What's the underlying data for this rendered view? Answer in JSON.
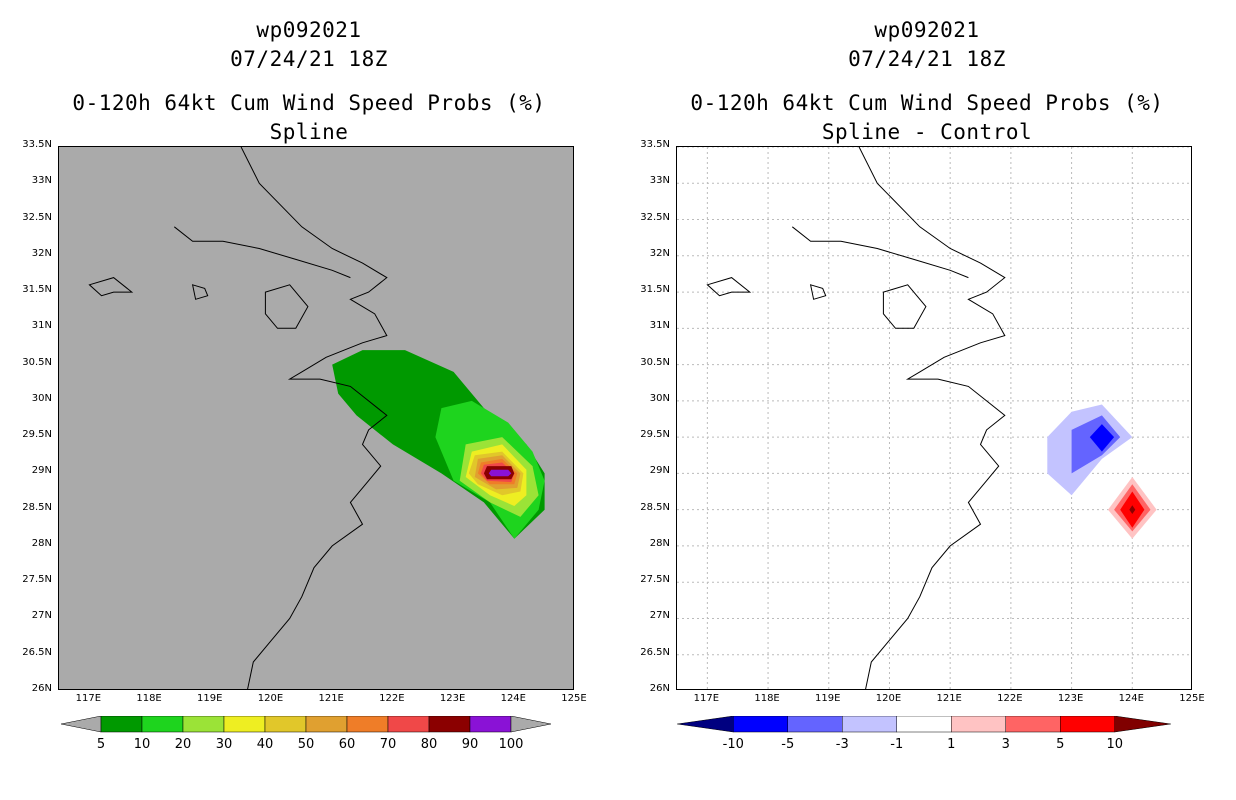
{
  "panels": [
    {
      "id": "left",
      "title_lines": [
        "wp092021",
        "07/24/21 18Z",
        "0-120h 64kt Cum Wind Speed Probs (%)",
        "Spline"
      ],
      "background": "#aaaaaa",
      "gridlines": false,
      "colorbar": {
        "labels": [
          "5",
          "10",
          "20",
          "30",
          "40",
          "50",
          "60",
          "70",
          "80",
          "90",
          "100"
        ],
        "low_arrow_color": "#aaaaaa",
        "high_arrow_color": "#aaaaaa",
        "colors": [
          "#009900",
          "#1ed41e",
          "#9be337",
          "#eeee22",
          "#e1c72a",
          "#e0a030",
          "#ef7d28",
          "#f04848",
          "#8b0000",
          "#8a12d6"
        ]
      }
    },
    {
      "id": "right",
      "title_lines": [
        "wp092021",
        "07/24/21 18Z",
        "0-120h 64kt Cum Wind Speed Probs (%)",
        "Spline - Control"
      ],
      "background": "#ffffff",
      "gridlines": true,
      "colorbar": {
        "labels": [
          "-10",
          "-5",
          "-3",
          "-1",
          "1",
          "3",
          "5",
          "10"
        ],
        "low_arrow_color": "#000080",
        "high_arrow_color": "#800000",
        "colors": [
          "#0000ff",
          "#6464ff",
          "#c3c3ff",
          "#ffffff",
          "#ffc3c3",
          "#ff6464",
          "#ff0000"
        ]
      }
    }
  ],
  "axes": {
    "lat_labels": [
      "33.5N",
      "33N",
      "32.5N",
      "32N",
      "31.5N",
      "31N",
      "30.5N",
      "30N",
      "29.5N",
      "29N",
      "28.5N",
      "28N",
      "27.5N",
      "27N",
      "26.5N",
      "26N"
    ],
    "lat_values": [
      33.5,
      33,
      32.5,
      32,
      31.5,
      31,
      30.5,
      30,
      29.5,
      29,
      28.5,
      28,
      27.5,
      27,
      26.5,
      26
    ],
    "lon_labels": [
      "117E",
      "118E",
      "119E",
      "120E",
      "121E",
      "122E",
      "123E",
      "124E",
      "125E"
    ],
    "lon_values": [
      117,
      118,
      119,
      120,
      121,
      122,
      123,
      124,
      125
    ],
    "lon_range": [
      116.5,
      125
    ],
    "lat_range": [
      26,
      33.5
    ]
  },
  "map_data": {
    "probability_contours_left": [
      {
        "level": "5",
        "color": "#009900",
        "lonlat": [
          [
            121.0,
            30.5
          ],
          [
            121.5,
            30.7
          ],
          [
            122.2,
            30.7
          ],
          [
            123.0,
            30.4
          ],
          [
            123.5,
            29.9
          ],
          [
            124.2,
            29.4
          ],
          [
            124.5,
            29.0
          ],
          [
            124.5,
            28.5
          ],
          [
            124.0,
            28.1
          ],
          [
            123.5,
            28.6
          ],
          [
            122.8,
            29.0
          ],
          [
            122.0,
            29.4
          ],
          [
            121.4,
            29.8
          ],
          [
            121.1,
            30.1
          ]
        ]
      },
      {
        "level": "10",
        "color": "#1ed41e",
        "lonlat": [
          [
            122.8,
            29.9
          ],
          [
            123.3,
            30.0
          ],
          [
            123.9,
            29.7
          ],
          [
            124.3,
            29.3
          ],
          [
            124.5,
            28.9
          ],
          [
            124.4,
            28.5
          ],
          [
            124.0,
            28.1
          ],
          [
            123.6,
            28.6
          ],
          [
            123.0,
            28.9
          ],
          [
            122.7,
            29.5
          ]
        ]
      },
      {
        "level": "20",
        "color": "#9be337",
        "lonlat": [
          [
            123.2,
            29.4
          ],
          [
            123.8,
            29.5
          ],
          [
            124.3,
            29.1
          ],
          [
            124.4,
            28.7
          ],
          [
            124.1,
            28.4
          ],
          [
            123.6,
            28.6
          ],
          [
            123.1,
            28.9
          ]
        ]
      },
      {
        "level": "30",
        "color": "#eeee22",
        "lonlat": [
          [
            123.3,
            29.3
          ],
          [
            123.8,
            29.4
          ],
          [
            124.2,
            29.05
          ],
          [
            124.2,
            28.7
          ],
          [
            124.0,
            28.55
          ],
          [
            123.6,
            28.7
          ],
          [
            123.2,
            28.95
          ]
        ]
      },
      {
        "level": "40",
        "color": "#e1c72a",
        "lonlat": [
          [
            123.35,
            29.25
          ],
          [
            123.8,
            29.3
          ],
          [
            124.15,
            29.0
          ],
          [
            124.1,
            28.75
          ],
          [
            123.8,
            28.7
          ],
          [
            123.4,
            28.85
          ],
          [
            123.25,
            29.0
          ]
        ]
      },
      {
        "level": "50",
        "color": "#e0a030",
        "lonlat": [
          [
            123.4,
            29.2
          ],
          [
            123.8,
            29.25
          ],
          [
            124.1,
            29.0
          ],
          [
            124.05,
            28.8
          ],
          [
            123.7,
            28.78
          ],
          [
            123.35,
            28.95
          ]
        ]
      },
      {
        "level": "60",
        "color": "#ef7d28",
        "lonlat": [
          [
            123.45,
            29.15
          ],
          [
            123.8,
            29.2
          ],
          [
            124.05,
            29.0
          ],
          [
            124.0,
            28.85
          ],
          [
            123.6,
            28.85
          ],
          [
            123.4,
            29.0
          ]
        ]
      },
      {
        "level": "70",
        "color": "#f04848",
        "lonlat": [
          [
            123.5,
            29.12
          ],
          [
            123.8,
            29.15
          ],
          [
            124.0,
            29.0
          ],
          [
            123.95,
            28.88
          ],
          [
            123.55,
            28.9
          ],
          [
            123.45,
            29.0
          ]
        ]
      },
      {
        "level": "80",
        "color": "#8b0000",
        "lonlat": [
          [
            123.55,
            29.1
          ],
          [
            123.95,
            29.1
          ],
          [
            124.0,
            29.0
          ],
          [
            123.95,
            28.92
          ],
          [
            123.55,
            28.92
          ],
          [
            123.5,
            29.0
          ]
        ]
      },
      {
        "level": "90",
        "color": "#8a12d6",
        "lonlat": [
          [
            123.62,
            29.05
          ],
          [
            123.9,
            29.05
          ],
          [
            123.95,
            29.0
          ],
          [
            123.9,
            28.96
          ],
          [
            123.62,
            28.96
          ],
          [
            123.58,
            29.0
          ]
        ]
      }
    ],
    "difference_contours_right": [
      {
        "level": "-1",
        "color": "#c3c3ff",
        "lonlat": [
          [
            122.6,
            29.5
          ],
          [
            123.0,
            29.85
          ],
          [
            123.5,
            29.95
          ],
          [
            124.0,
            29.5
          ],
          [
            123.5,
            29.2
          ],
          [
            123.2,
            28.9
          ],
          [
            123.0,
            28.7
          ],
          [
            122.6,
            29.0
          ]
        ]
      },
      {
        "level": "-3",
        "color": "#6464ff",
        "lonlat": [
          [
            123.0,
            29.6
          ],
          [
            123.5,
            29.8
          ],
          [
            123.8,
            29.5
          ],
          [
            123.5,
            29.25
          ],
          [
            123.0,
            29.0
          ]
        ]
      },
      {
        "level": "-5",
        "color": "#0000ff",
        "lonlat": [
          [
            123.3,
            29.5
          ],
          [
            123.5,
            29.68
          ],
          [
            123.7,
            29.5
          ],
          [
            123.5,
            29.3
          ]
        ]
      },
      {
        "level": "1",
        "color": "#ffc3c3",
        "lonlat": [
          [
            123.6,
            28.5
          ],
          [
            124.0,
            28.95
          ],
          [
            124.4,
            28.5
          ],
          [
            124.0,
            28.1
          ]
        ]
      },
      {
        "level": "3",
        "color": "#ff6464",
        "lonlat": [
          [
            123.7,
            28.5
          ],
          [
            124.0,
            28.85
          ],
          [
            124.3,
            28.5
          ],
          [
            124.0,
            28.2
          ]
        ]
      },
      {
        "level": "5",
        "color": "#ff0000",
        "lonlat": [
          [
            123.8,
            28.5
          ],
          [
            124.0,
            28.75
          ],
          [
            124.2,
            28.5
          ],
          [
            124.0,
            28.25
          ]
        ]
      },
      {
        "level": "10",
        "color": "#8b0000",
        "lonlat": [
          [
            123.95,
            28.5
          ],
          [
            124.0,
            28.56
          ],
          [
            124.05,
            28.5
          ],
          [
            124.0,
            28.44
          ]
        ]
      }
    ],
    "coastline_lonlat": [
      [
        119.5,
        33.5
      ],
      [
        119.8,
        33.0
      ],
      [
        120.5,
        32.4
      ],
      [
        121.0,
        32.1
      ],
      [
        121.5,
        31.9
      ],
      [
        121.9,
        31.7
      ],
      [
        121.6,
        31.5
      ],
      [
        121.3,
        31.4
      ],
      [
        121.7,
        31.2
      ],
      [
        121.9,
        30.9
      ],
      [
        121.5,
        30.8
      ],
      [
        120.9,
        30.6
      ],
      [
        120.5,
        30.4
      ],
      [
        120.3,
        30.3
      ],
      [
        120.8,
        30.3
      ],
      [
        121.3,
        30.2
      ],
      [
        121.6,
        30.0
      ],
      [
        121.9,
        29.8
      ],
      [
        121.6,
        29.6
      ],
      [
        121.5,
        29.4
      ],
      [
        121.8,
        29.1
      ],
      [
        121.6,
        28.9
      ],
      [
        121.3,
        28.6
      ],
      [
        121.5,
        28.3
      ],
      [
        121.0,
        28.0
      ],
      [
        120.7,
        27.7
      ],
      [
        120.5,
        27.3
      ],
      [
        120.3,
        27.0
      ],
      [
        120.0,
        26.7
      ],
      [
        119.7,
        26.4
      ],
      [
        119.6,
        26.0
      ]
    ],
    "lake_outlines_lonlat": [
      [
        [
          119.9,
          31.5
        ],
        [
          120.3,
          31.6
        ],
        [
          120.6,
          31.3
        ],
        [
          120.4,
          31.0
        ],
        [
          120.1,
          31.0
        ],
        [
          119.9,
          31.2
        ]
      ],
      [
        [
          117.0,
          31.6
        ],
        [
          117.4,
          31.7
        ],
        [
          117.7,
          31.5
        ],
        [
          117.4,
          31.5
        ],
        [
          117.2,
          31.45
        ]
      ],
      [
        [
          118.7,
          31.6
        ],
        [
          118.9,
          31.55
        ],
        [
          118.95,
          31.45
        ],
        [
          118.75,
          31.4
        ]
      ]
    ],
    "river_lonlat": [
      [
        118.4,
        32.4
      ],
      [
        118.7,
        32.2
      ],
      [
        119.2,
        32.2
      ],
      [
        119.8,
        32.1
      ],
      [
        120.4,
        31.95
      ],
      [
        121.0,
        31.8
      ],
      [
        121.3,
        31.7
      ]
    ]
  }
}
